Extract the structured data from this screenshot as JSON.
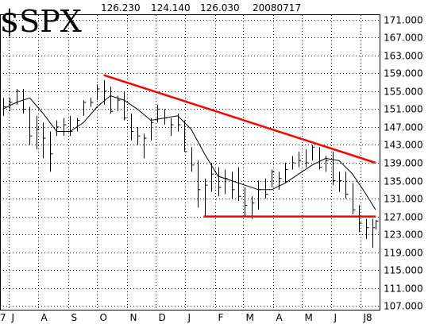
{
  "header": {
    "symbol": "$SPX",
    "ohlc": [
      "126.230",
      "124.140",
      "126.030"
    ],
    "date": "20080717"
  },
  "colors": {
    "trendline": "#ff0000",
    "price": "#000000",
    "background": "#ffffff"
  },
  "chart_data": {
    "type": "line",
    "title": "$SPX",
    "xlabel": "",
    "ylabel": "",
    "grid": true,
    "y_axis_side": "right",
    "ylim": [
      106,
      172
    ],
    "y_ticks": [
      107,
      111,
      115,
      119,
      123,
      127,
      131,
      135,
      139,
      143,
      147,
      151,
      155,
      159,
      163,
      167,
      171
    ],
    "y_tick_labels": [
      "107.000",
      "111.000",
      "115.000",
      "119.000",
      "123.000",
      "127.000",
      "131.000",
      "135.000",
      "139.000",
      "143.000",
      "147.000",
      "151.000",
      "155.000",
      "159.000",
      "163.000",
      "167.000",
      "171.000"
    ],
    "x_ticks": [
      {
        "label": "7",
        "month": "2007-07"
      },
      {
        "label": "J",
        "month": "2007-07"
      },
      {
        "label": "A",
        "month": "2007-08"
      },
      {
        "label": "S",
        "month": "2007-09"
      },
      {
        "label": "O",
        "month": "2007-10"
      },
      {
        "label": "N",
        "month": "2007-11"
      },
      {
        "label": "D",
        "month": "2007-12"
      },
      {
        "label": "J",
        "month": "2008-01"
      },
      {
        "label": "F",
        "month": "2008-02"
      },
      {
        "label": "M",
        "month": "2008-03"
      },
      {
        "label": "A",
        "month": "2008-04"
      },
      {
        "label": "M",
        "month": "2008-05"
      },
      {
        "label": "J",
        "month": "2008-06"
      },
      {
        "label": "J8",
        "month": "2008-07"
      }
    ],
    "series": [
      {
        "kind": "price",
        "dates": [
          "2007-06-25",
          "2007-07-02",
          "2007-07-09",
          "2007-07-16",
          "2007-07-23",
          "2007-07-30",
          "2007-08-06",
          "2007-08-13",
          "2007-08-20",
          "2007-08-27",
          "2007-09-03",
          "2007-09-10",
          "2007-09-17",
          "2007-09-24",
          "2007-10-01",
          "2007-10-08",
          "2007-10-15",
          "2007-10-22",
          "2007-10-29",
          "2007-11-05",
          "2007-11-12",
          "2007-11-19",
          "2007-11-26",
          "2007-12-03",
          "2007-12-10",
          "2007-12-17",
          "2007-12-24",
          "2007-12-31",
          "2008-01-07",
          "2008-01-14",
          "2008-01-21",
          "2008-01-28",
          "2008-02-04",
          "2008-02-11",
          "2008-02-18",
          "2008-02-25",
          "2008-03-03",
          "2008-03-10",
          "2008-03-17",
          "2008-03-24",
          "2008-03-31",
          "2008-04-07",
          "2008-04-14",
          "2008-04-21",
          "2008-04-28",
          "2008-05-05",
          "2008-05-12",
          "2008-05-19",
          "2008-05-26",
          "2008-06-02",
          "2008-06-09",
          "2008-06-16",
          "2008-06-23",
          "2008-06-30",
          "2008-07-07",
          "2008-07-14",
          "2008-07-17"
        ],
        "high": [
          153.5,
          153.5,
          155.5,
          155.5,
          151.5,
          149.5,
          148.0,
          146.0,
          148.5,
          149.0,
          149.5,
          149.0,
          153.0,
          153.5,
          156.5,
          157.5,
          156.0,
          154.0,
          155.0,
          150.0,
          147.0,
          145.5,
          149.0,
          152.0,
          151.0,
          149.0,
          150.0,
          148.5,
          142.5,
          139.5,
          135.5,
          139.0,
          138.0,
          137.5,
          137.0,
          138.0,
          133.5,
          131.5,
          135.0,
          135.5,
          137.5,
          137.0,
          139.0,
          140.5,
          141.5,
          142.0,
          143.0,
          142.5,
          140.5,
          141.5,
          137.0,
          137.0,
          134.5,
          129.5,
          126.5,
          126.5,
          126.2
        ],
        "low": [
          149.5,
          150.5,
          152.0,
          150.0,
          143.0,
          142.0,
          140.0,
          137.0,
          145.0,
          145.0,
          145.0,
          146.0,
          149.5,
          151.5,
          153.0,
          152.0,
          150.0,
          150.5,
          148.5,
          144.0,
          143.0,
          140.0,
          144.0,
          148.0,
          147.5,
          145.0,
          146.0,
          141.5,
          137.0,
          129.0,
          127.0,
          132.5,
          131.5,
          132.0,
          131.0,
          130.5,
          127.0,
          126.5,
          128.5,
          131.0,
          133.5,
          133.0,
          134.5,
          137.5,
          138.0,
          138.0,
          139.5,
          137.5,
          137.0,
          134.0,
          132.5,
          131.0,
          127.5,
          123.5,
          122.0,
          120.0,
          124.1
        ],
        "close": [
          151.5,
          152.5,
          155.0,
          151.0,
          145.0,
          146.5,
          144.5,
          141.0,
          147.0,
          147.5,
          146.0,
          148.5,
          152.5,
          152.5,
          155.5,
          155.0,
          150.5,
          153.0,
          149.0,
          146.0,
          145.0,
          144.5,
          148.0,
          151.0,
          149.0,
          147.5,
          147.5,
          141.5,
          138.5,
          133.0,
          134.0,
          136.5,
          133.5,
          135.5,
          133.0,
          131.5,
          129.5,
          130.0,
          133.0,
          132.0,
          137.0,
          135.5,
          137.5,
          139.0,
          139.5,
          139.0,
          142.5,
          138.0,
          139.5,
          135.0,
          135.0,
          132.0,
          128.5,
          125.5,
          124.5,
          124.5,
          126.0
        ]
      },
      {
        "kind": "moving-average",
        "dates": [
          "2007-06-25",
          "2007-07-09",
          "2007-07-23",
          "2007-08-06",
          "2007-08-20",
          "2007-09-03",
          "2007-09-17",
          "2007-10-01",
          "2007-10-15",
          "2007-10-29",
          "2007-11-12",
          "2007-11-26",
          "2007-12-10",
          "2007-12-24",
          "2008-01-07",
          "2008-01-21",
          "2008-02-04",
          "2008-02-18",
          "2008-03-03",
          "2008-03-17",
          "2008-03-31",
          "2008-04-14",
          "2008-04-28",
          "2008-05-12",
          "2008-05-26",
          "2008-06-09",
          "2008-06-23",
          "2008-07-07",
          "2008-07-17"
        ],
        "values": [
          151.0,
          152.5,
          153.5,
          150.0,
          146.0,
          146.0,
          148.0,
          151.5,
          154.0,
          153.0,
          151.0,
          148.5,
          149.0,
          149.5,
          146.5,
          141.0,
          136.0,
          135.0,
          134.0,
          133.0,
          133.0,
          134.5,
          136.5,
          138.5,
          140.0,
          139.5,
          136.5,
          132.0,
          128.5
        ]
      },
      {
        "kind": "trendline",
        "dates": [
          "2007-10-08",
          "2008-07-17"
        ],
        "values": [
          158.6,
          139.0
        ]
      },
      {
        "kind": "trendline",
        "dates": [
          "2008-01-20",
          "2008-07-17"
        ],
        "values": [
          127.0,
          127.0
        ]
      }
    ]
  }
}
